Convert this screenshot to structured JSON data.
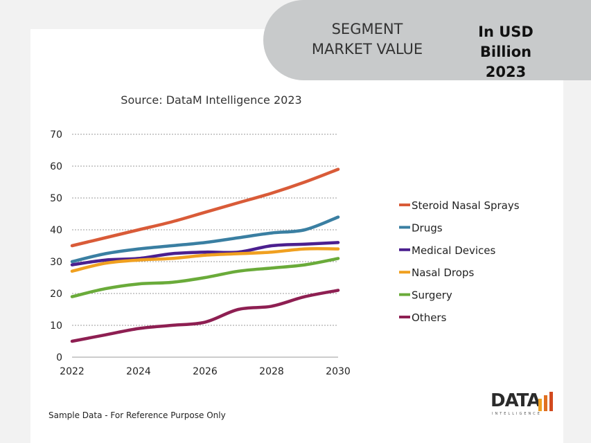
{
  "header": {
    "segment_line1": "SEGMENT",
    "segment_line2": "MARKET VALUE",
    "unit_line1": "In USD Billion",
    "unit_line2": "2023"
  },
  "footnote": "Sample Data - For Reference Purpose Only",
  "logo": {
    "word": "DATA",
    "sub": "INTELLIGENCE"
  },
  "chart_data": {
    "type": "line",
    "title": "Source: DataM Intelligence 2023",
    "xlabel": "",
    "ylabel": "",
    "x": [
      2022,
      2023,
      2024,
      2025,
      2026,
      2027,
      2028,
      2029,
      2030
    ],
    "xticks": [
      "2022",
      "2024",
      "2026",
      "2028",
      "2030"
    ],
    "yticks": [
      "0",
      "10",
      "20",
      "30",
      "40",
      "50",
      "60",
      "70"
    ],
    "ylim": [
      0,
      70
    ],
    "grid": "horizontal-dotted",
    "legend_position": "right",
    "series": [
      {
        "name": "Steroid Nasal Sprays",
        "color": "#d95b38",
        "values": [
          35,
          37.5,
          40,
          42.5,
          45.5,
          48.5,
          51.5,
          55,
          59
        ]
      },
      {
        "name": "Drugs",
        "color": "#3a7fa2",
        "values": [
          30,
          32.5,
          34,
          35,
          36,
          37.5,
          39,
          40,
          44
        ]
      },
      {
        "name": "Medical Devices",
        "color": "#4b1f8f",
        "values": [
          29,
          30.5,
          31,
          32.5,
          33,
          33,
          35,
          35.5,
          36
        ]
      },
      {
        "name": "Nasal Drops",
        "color": "#f0a020",
        "values": [
          27,
          29.5,
          30.5,
          31,
          32,
          32.5,
          33,
          34,
          34
        ]
      },
      {
        "name": "Surgery",
        "color": "#6aab3a",
        "values": [
          19,
          21.5,
          23,
          23.5,
          25,
          27,
          28,
          29,
          31
        ]
      },
      {
        "name": "Others",
        "color": "#8e1f52",
        "values": [
          5,
          7,
          9,
          10,
          11,
          15,
          16,
          19,
          21
        ]
      }
    ]
  }
}
